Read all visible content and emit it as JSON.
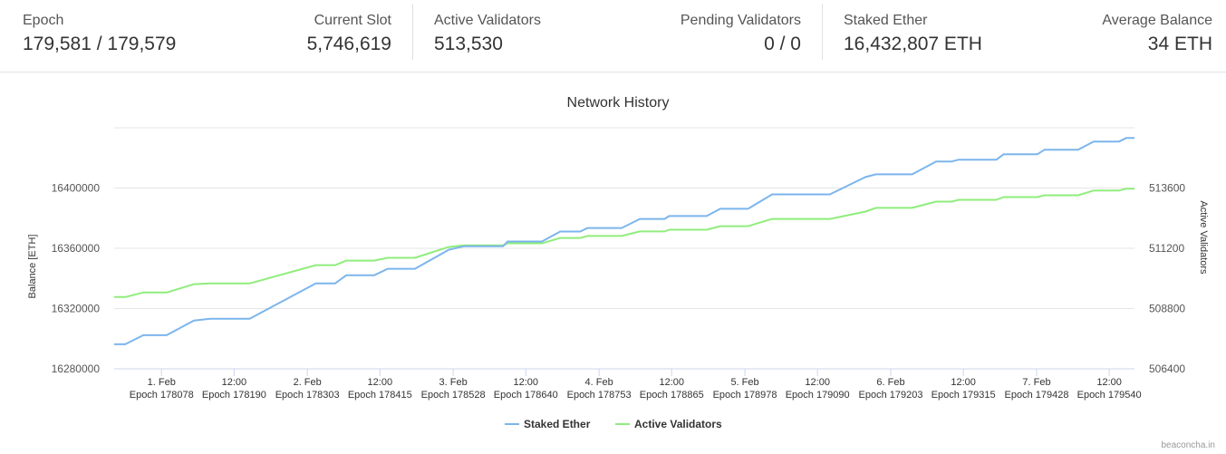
{
  "stats": [
    {
      "label": "Epoch",
      "value": "179,581 / 179,579"
    },
    {
      "label": "Current Slot",
      "value": "5,746,619"
    },
    {
      "label": "Active Validators",
      "value": "513,530"
    },
    {
      "label": "Pending Validators",
      "value": "0 / 0"
    },
    {
      "label": "Staked Ether",
      "value": "16,432,807 ETH"
    },
    {
      "label": "Average Balance",
      "value": "34 ETH"
    }
  ],
  "credit": "beaconcha.in",
  "chart_data": {
    "type": "line",
    "title": "Network History",
    "xlabel": "",
    "ylabel": "Balance [ETH]",
    "ylabel_right": "Active Validators",
    "xlim": [
      178005,
      179579
    ],
    "ylim": [
      16280000,
      16440000
    ],
    "ylim_right": [
      506400,
      516000
    ],
    "yticks": [
      16280000,
      16320000,
      16360000,
      16400000
    ],
    "yticks_right": [
      506400,
      508800,
      511200,
      513600
    ],
    "xticks": [
      {
        "epoch": 178078,
        "label1": "1. Feb",
        "label2": "Epoch 178078"
      },
      {
        "epoch": 178190,
        "label1": "12:00",
        "label2": "Epoch 178190"
      },
      {
        "epoch": 178303,
        "label1": "2. Feb",
        "label2": "Epoch 178303"
      },
      {
        "epoch": 178415,
        "label1": "12:00",
        "label2": "Epoch 178415"
      },
      {
        "epoch": 178528,
        "label1": "3. Feb",
        "label2": "Epoch 178528"
      },
      {
        "epoch": 178640,
        "label1": "12:00",
        "label2": "Epoch 178640"
      },
      {
        "epoch": 178753,
        "label1": "4. Feb",
        "label2": "Epoch 178753"
      },
      {
        "epoch": 178865,
        "label1": "12:00",
        "label2": "Epoch 178865"
      },
      {
        "epoch": 178978,
        "label1": "5. Feb",
        "label2": "Epoch 178978"
      },
      {
        "epoch": 179090,
        "label1": "12:00",
        "label2": "Epoch 179090"
      },
      {
        "epoch": 179203,
        "label1": "6. Feb",
        "label2": "Epoch 179203"
      },
      {
        "epoch": 179315,
        "label1": "12:00",
        "label2": "Epoch 179315"
      },
      {
        "epoch": 179428,
        "label1": "7. Feb",
        "label2": "Epoch 179428"
      },
      {
        "epoch": 179540,
        "label1": "12:00",
        "label2": "Epoch 179540"
      }
    ],
    "grid": true,
    "legend_position": "bottom",
    "x": [
      178005,
      178022,
      178050,
      178086,
      178128,
      178153,
      178214,
      178316,
      178346,
      178363,
      178406,
      178427,
      178469,
      178521,
      178545,
      178605,
      178612,
      178665,
      178693,
      178724,
      178735,
      178788,
      178816,
      178854,
      178861,
      178919,
      178940,
      178983,
      179020,
      179109,
      179164,
      179180,
      179236,
      179273,
      179297,
      179308,
      179366,
      179377,
      179429,
      179440,
      179492,
      179516,
      179555,
      179566,
      179579
    ],
    "series": [
      {
        "name": "Staked Ether",
        "axis": "left",
        "color": "#7cb5ec",
        "values": [
          16296300,
          16296300,
          16302300,
          16302300,
          16312000,
          16313200,
          16313200,
          16336700,
          16336700,
          16342100,
          16342100,
          16346400,
          16346400,
          16359000,
          16361400,
          16361400,
          16364500,
          16364500,
          16371100,
          16371100,
          16373500,
          16373500,
          16379500,
          16379500,
          16381400,
          16381400,
          16386200,
          16386200,
          16395800,
          16395800,
          16407300,
          16409100,
          16409100,
          16417600,
          16417600,
          16418800,
          16418800,
          16422400,
          16422400,
          16425400,
          16425400,
          16430800,
          16430800,
          16433200,
          16433200
        ]
      },
      {
        "name": "Active Validators",
        "axis": "right",
        "color": "#90ed7d",
        "values": [
          509260,
          509260,
          509440,
          509440,
          509770,
          509800,
          509800,
          510530,
          510530,
          510710,
          510710,
          510820,
          510820,
          511250,
          511320,
          511320,
          511400,
          511400,
          511610,
          511610,
          511690,
          511690,
          511870,
          511870,
          511940,
          511940,
          512080,
          512080,
          512370,
          512370,
          512660,
          512810,
          512810,
          513060,
          513060,
          513130,
          513130,
          513240,
          513240,
          513310,
          513310,
          513500,
          513500,
          513570,
          513570
        ]
      }
    ]
  }
}
